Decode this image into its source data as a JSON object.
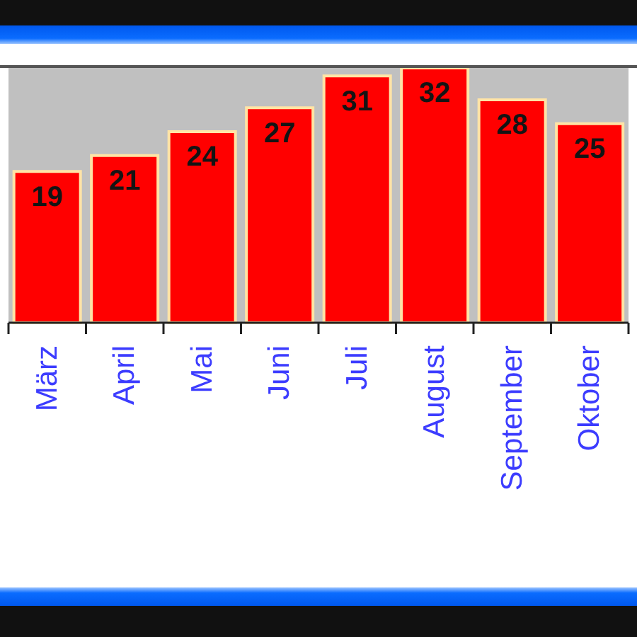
{
  "chart_data": {
    "type": "bar",
    "categories": [
      "März",
      "April",
      "Mai",
      "Juni",
      "Juli",
      "August",
      "September",
      "Oktober"
    ],
    "values": [
      19,
      21,
      24,
      27,
      31,
      32,
      28,
      25
    ],
    "color": "#ff0000",
    "data_labels": true,
    "tick_labels": "x"
  }
}
